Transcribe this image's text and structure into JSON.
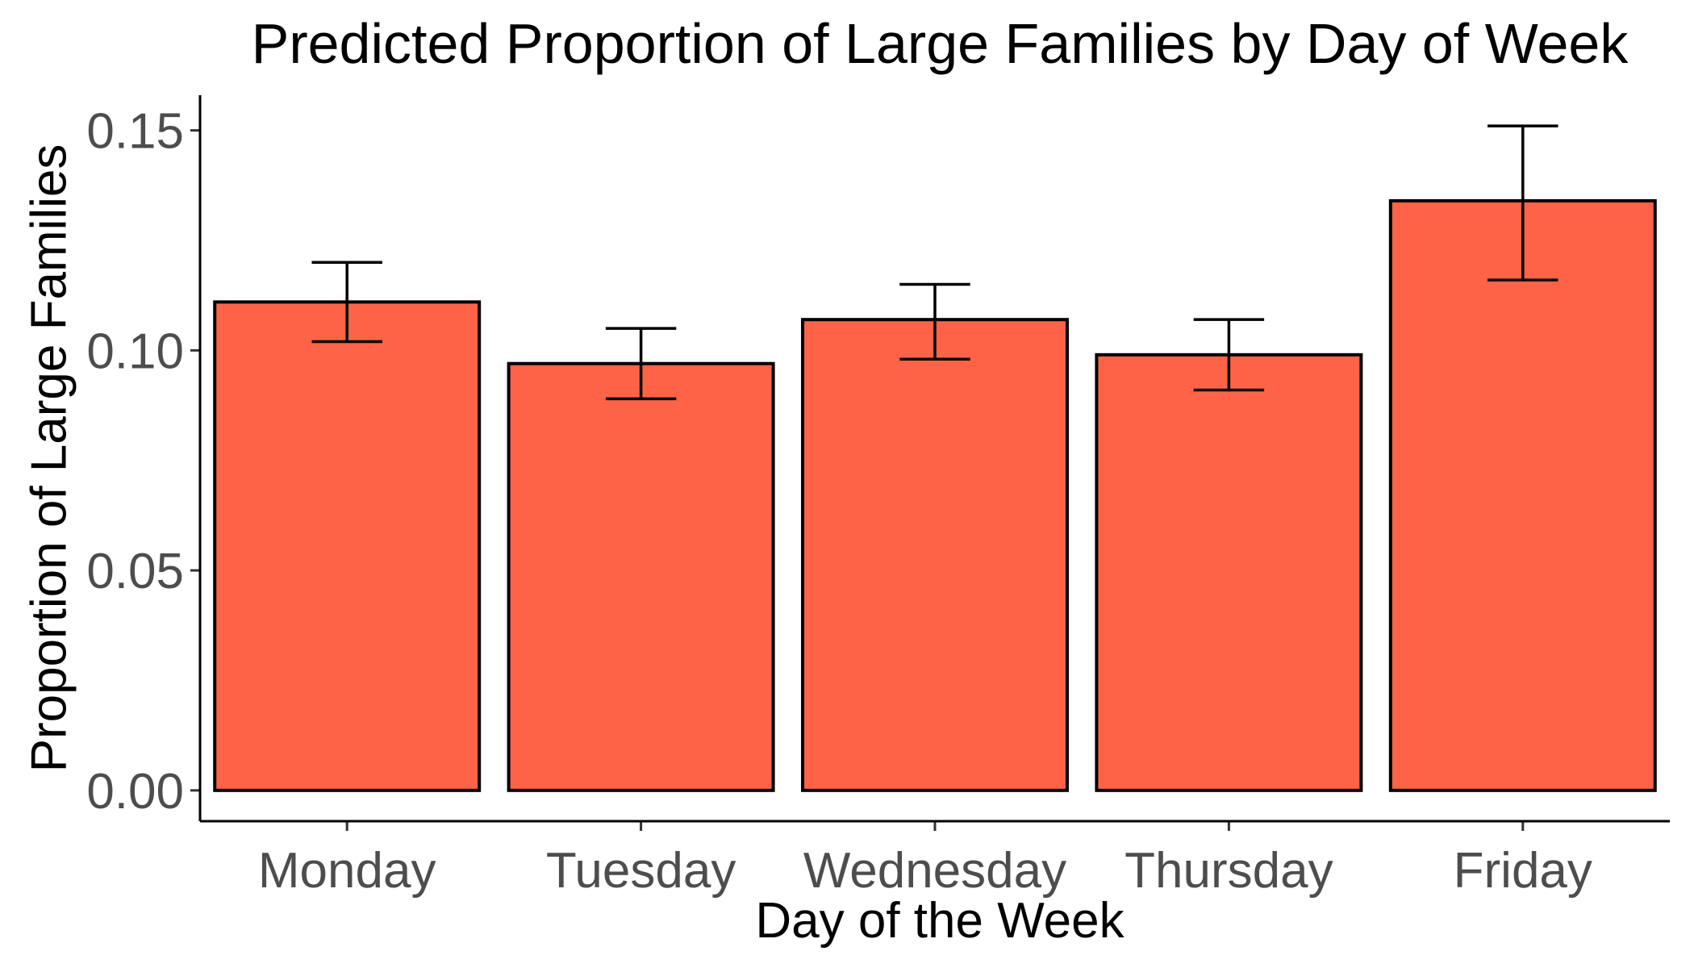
{
  "chart_data": {
    "type": "bar",
    "title": "Predicted Proportion of Large Families by Day of Week",
    "xlabel": "Day of the Week",
    "ylabel": "Proportion of Large Families",
    "categories": [
      "Monday",
      "Tuesday",
      "Wednesday",
      "Thursday",
      "Friday"
    ],
    "values": [
      0.111,
      0.097,
      0.107,
      0.099,
      0.134
    ],
    "error_lower": [
      0.102,
      0.089,
      0.098,
      0.091,
      0.116
    ],
    "error_upper": [
      0.12,
      0.105,
      0.115,
      0.107,
      0.151
    ],
    "ylim": [
      -0.007,
      0.158
    ],
    "yticks": [
      0.0,
      0.05,
      0.1,
      0.15
    ],
    "ytick_labels": [
      "0.00",
      "0.05",
      "0.10",
      "0.15"
    ],
    "bar_color": "#ff6347",
    "grid": false,
    "legend": "none"
  }
}
